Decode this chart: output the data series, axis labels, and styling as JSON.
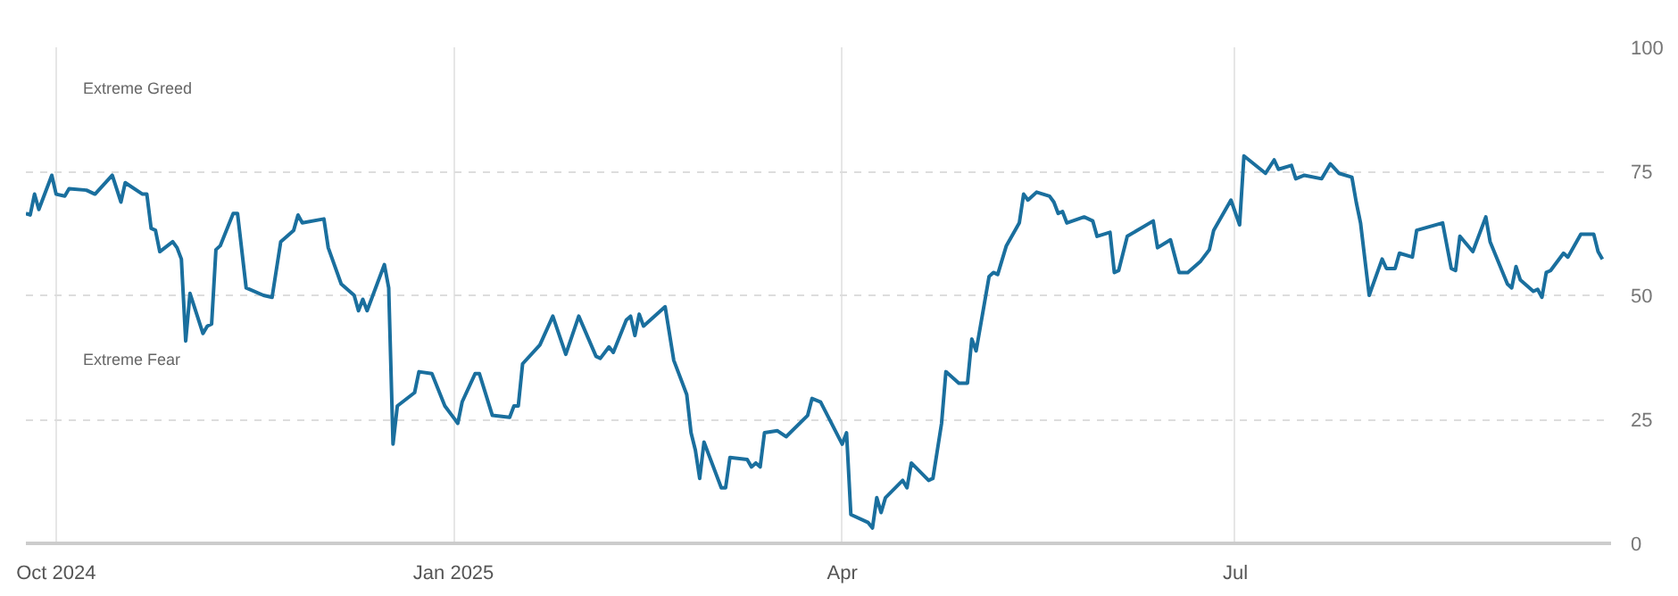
{
  "chart_data": {
    "type": "line",
    "annotations": [
      "Extreme Greed",
      "Extreme Fear"
    ],
    "xlim": [
      "2024-09-24",
      "2025-09-26"
    ],
    "xticks": [
      {
        "value": "2024-10-01",
        "label": "Oct 2024"
      },
      {
        "value": "2025-01-01",
        "label": "Jan 2025"
      },
      {
        "value": "2025-04-01",
        "label": "Apr"
      },
      {
        "value": "2025-07-01",
        "label": "Jul"
      }
    ],
    "ylim": [
      0,
      100
    ],
    "yticks": [
      0,
      25,
      50,
      75,
      100
    ],
    "grid": true,
    "marker": "none",
    "line_style": "solid",
    "series": [
      {
        "color": "#1a6f9e",
        "x": [
          "2024-09-24",
          "2024-09-25",
          "2024-09-26",
          "2024-09-27",
          "2024-09-30",
          "2024-10-01",
          "2024-10-03",
          "2024-10-04",
          "2024-10-08",
          "2024-10-10",
          "2024-10-14",
          "2024-10-16",
          "2024-10-17",
          "2024-10-21",
          "2024-10-22",
          "2024-10-23",
          "2024-10-24",
          "2024-10-25",
          "2024-10-28",
          "2024-10-29",
          "2024-10-30",
          "2024-10-31",
          "2024-11-01",
          "2024-11-04",
          "2024-11-05",
          "2024-11-06",
          "2024-11-07",
          "2024-11-08",
          "2024-11-11",
          "2024-11-12",
          "2024-11-14",
          "2024-11-18",
          "2024-11-20",
          "2024-11-22",
          "2024-11-25",
          "2024-11-26",
          "2024-11-27",
          "2024-12-02",
          "2024-12-03",
          "2024-12-06",
          "2024-12-09",
          "2024-12-10",
          "2024-12-11",
          "2024-12-12",
          "2024-12-16",
          "2024-12-17",
          "2024-12-18",
          "2024-12-19",
          "2024-12-23",
          "2024-12-24",
          "2024-12-27",
          "2024-12-30",
          "2025-01-02",
          "2025-01-03",
          "2025-01-06",
          "2025-01-07",
          "2025-01-10",
          "2025-01-14",
          "2025-01-15",
          "2025-01-16",
          "2025-01-17",
          "2025-01-21",
          "2025-01-24",
          "2025-01-27",
          "2025-01-30",
          "2025-02-03",
          "2025-02-04",
          "2025-02-06",
          "2025-02-07",
          "2025-02-10",
          "2025-02-11",
          "2025-02-12",
          "2025-02-13",
          "2025-02-14",
          "2025-02-19",
          "2025-02-21",
          "2025-02-24",
          "2025-02-25",
          "2025-02-26",
          "2025-02-27",
          "2025-02-28",
          "2025-03-04",
          "2025-03-05",
          "2025-03-06",
          "2025-03-10",
          "2025-03-11",
          "2025-03-12",
          "2025-03-13",
          "2025-03-14",
          "2025-03-17",
          "2025-03-19",
          "2025-03-24",
          "2025-03-25",
          "2025-03-27",
          "2025-04-01",
          "2025-04-02",
          "2025-04-03",
          "2025-04-07",
          "2025-04-08",
          "2025-04-09",
          "2025-04-10",
          "2025-04-11",
          "2025-04-15",
          "2025-04-16",
          "2025-04-17",
          "2025-04-21",
          "2025-04-22",
          "2025-04-24",
          "2025-04-25",
          "2025-04-28",
          "2025-04-30",
          "2025-05-01",
          "2025-05-02",
          "2025-05-05",
          "2025-05-06",
          "2025-05-07",
          "2025-05-09",
          "2025-05-12",
          "2025-05-13",
          "2025-05-14",
          "2025-05-16",
          "2025-05-19",
          "2025-05-20",
          "2025-05-21",
          "2025-05-22",
          "2025-05-23",
          "2025-05-27",
          "2025-05-29",
          "2025-05-30",
          "2025-06-02",
          "2025-06-03",
          "2025-06-04",
          "2025-06-06",
          "2025-06-12",
          "2025-06-13",
          "2025-06-16",
          "2025-06-18",
          "2025-06-20",
          "2025-06-23",
          "2025-06-25",
          "2025-06-26",
          "2025-06-30",
          "2025-07-02",
          "2025-07-03",
          "2025-07-08",
          "2025-07-10",
          "2025-07-11",
          "2025-07-14",
          "2025-07-15",
          "2025-07-17",
          "2025-07-21",
          "2025-07-23",
          "2025-07-25",
          "2025-07-28",
          "2025-07-29",
          "2025-07-30",
          "2025-08-01",
          "2025-08-04",
          "2025-08-05",
          "2025-08-07",
          "2025-08-08",
          "2025-08-11",
          "2025-08-12",
          "2025-08-18",
          "2025-08-20",
          "2025-08-21",
          "2025-08-22",
          "2025-08-25",
          "2025-08-28",
          "2025-08-29",
          "2025-09-02",
          "2025-09-03",
          "2025-09-04",
          "2025-09-05",
          "2025-09-08",
          "2025-09-09",
          "2025-09-10",
          "2025-09-11",
          "2025-09-12",
          "2025-09-15",
          "2025-09-16",
          "2025-09-19",
          "2025-09-22",
          "2025-09-23",
          "2025-09-24"
        ],
        "values": [
          66.5,
          66.2,
          70.4,
          67.3,
          74.2,
          70.4,
          70.0,
          71.5,
          71.2,
          70.4,
          74.2,
          68.8,
          72.7,
          70.4,
          70.4,
          63.5,
          63.1,
          58.8,
          60.8,
          59.6,
          57.3,
          40.8,
          50.4,
          42.3,
          43.8,
          44.2,
          59.2,
          60.0,
          66.5,
          66.5,
          51.5,
          50.0,
          49.6,
          60.8,
          63.1,
          66.2,
          64.6,
          65.4,
          59.6,
          52.3,
          50.0,
          46.9,
          49.2,
          46.9,
          56.2,
          51.5,
          20.0,
          27.7,
          30.4,
          34.6,
          34.2,
          27.7,
          24.2,
          28.5,
          34.2,
          34.2,
          25.8,
          25.4,
          27.7,
          27.7,
          36.2,
          40.0,
          45.8,
          38.1,
          45.8,
          37.7,
          37.3,
          39.6,
          38.5,
          45.0,
          45.8,
          41.9,
          46.2,
          43.8,
          47.7,
          36.9,
          30.0,
          22.3,
          18.8,
          13.1,
          20.4,
          11.2,
          11.2,
          17.3,
          16.9,
          15.4,
          16.2,
          15.4,
          22.3,
          22.7,
          21.5,
          25.8,
          29.2,
          28.5,
          20.0,
          22.3,
          5.8,
          4.2,
          3.1,
          9.2,
          6.2,
          9.2,
          12.7,
          11.2,
          16.2,
          12.7,
          13.1,
          24.2,
          34.6,
          32.3,
          32.3,
          41.2,
          38.8,
          53.8,
          54.6,
          54.2,
          60.0,
          64.6,
          70.4,
          69.2,
          70.8,
          70.0,
          68.8,
          66.5,
          66.9,
          64.6,
          65.8,
          65.0,
          61.9,
          62.7,
          54.6,
          55.0,
          61.9,
          65.0,
          59.6,
          61.2,
          54.6,
          54.6,
          56.9,
          59.2,
          63.1,
          69.2,
          64.2,
          78.1,
          74.6,
          77.3,
          75.4,
          76.2,
          73.5,
          74.2,
          73.5,
          76.5,
          74.6,
          73.8,
          68.8,
          64.6,
          50.0,
          57.3,
          55.4,
          55.4,
          58.5,
          57.7,
          63.1,
          64.6,
          55.4,
          55.0,
          61.9,
          58.8,
          65.8,
          60.8,
          52.3,
          51.5,
          55.8,
          53.1,
          50.8,
          51.2,
          49.6,
          54.6,
          55.0,
          58.5,
          57.7,
          62.3,
          62.3,
          58.8,
          57.3
        ]
      }
    ]
  }
}
